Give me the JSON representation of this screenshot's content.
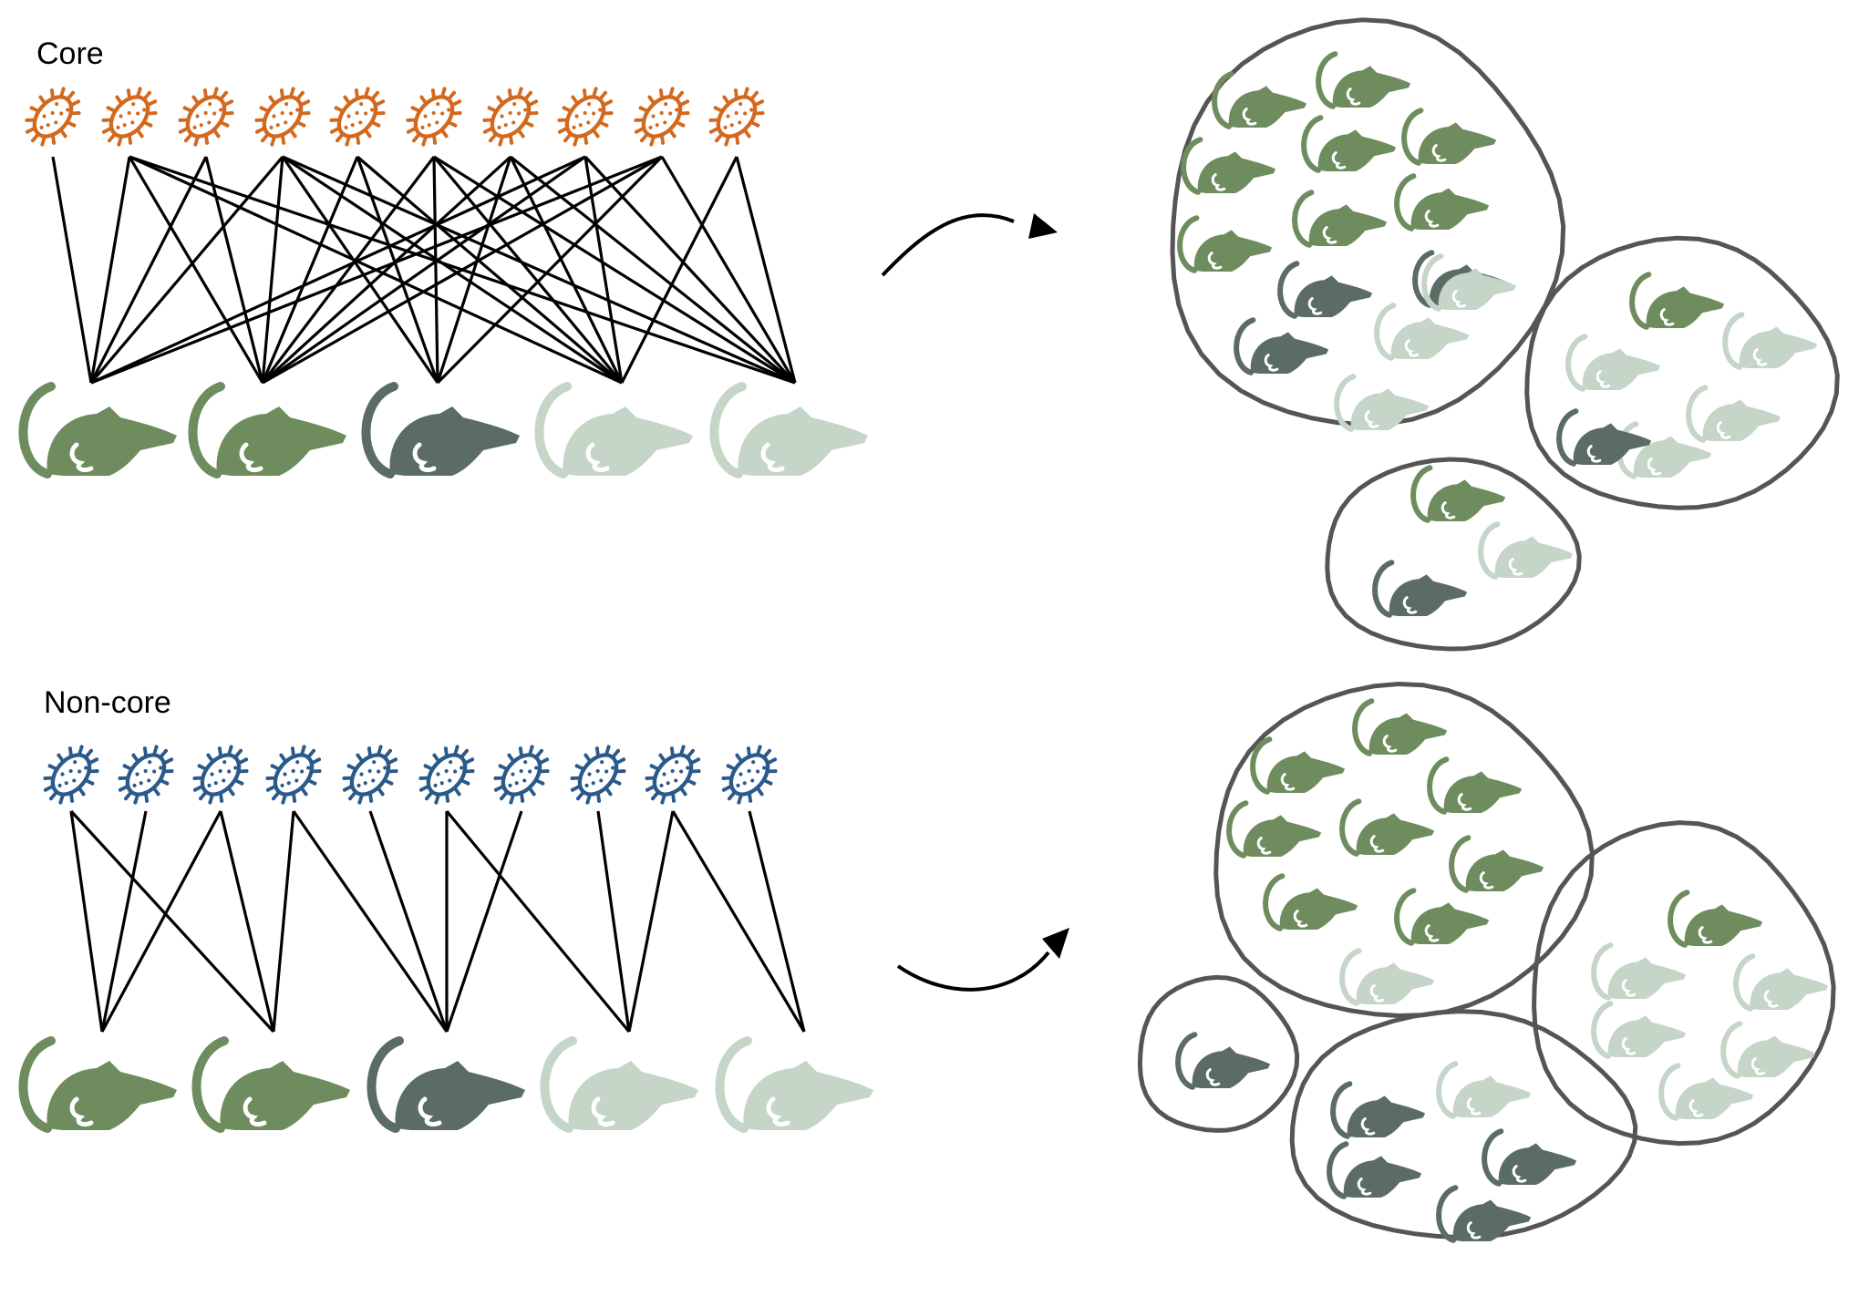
{
  "colors": {
    "core_bacteria": "#D2691E",
    "noncore_bacteria": "#2A5A8A",
    "mouse_green": "#6E8C5E",
    "mouse_dark": "#5B6B66",
    "mouse_light": "#C5D5C7",
    "cluster_outline": "#555555",
    "edge": "#000000"
  },
  "icons": {
    "bacterium": "bacterium-icon",
    "mouse": "mouse-icon"
  },
  "panels": [
    {
      "id": "core",
      "label": "Core",
      "bacteria_count": 10,
      "host_types": [
        "green",
        "green",
        "dark",
        "light",
        "light"
      ],
      "edges": [
        [
          0,
          0
        ],
        [
          1,
          0
        ],
        [
          2,
          0
        ],
        [
          3,
          0
        ],
        [
          7,
          0
        ],
        [
          8,
          0
        ],
        [
          1,
          1
        ],
        [
          2,
          1
        ],
        [
          3,
          1
        ],
        [
          4,
          1
        ],
        [
          5,
          1
        ],
        [
          6,
          1
        ],
        [
          7,
          1
        ],
        [
          8,
          1
        ],
        [
          3,
          2
        ],
        [
          4,
          2
        ],
        [
          5,
          2
        ],
        [
          6,
          2
        ],
        [
          8,
          2
        ],
        [
          1,
          3
        ],
        [
          3,
          3
        ],
        [
          4,
          3
        ],
        [
          5,
          3
        ],
        [
          6,
          3
        ],
        [
          7,
          3
        ],
        [
          9,
          3
        ],
        [
          1,
          4
        ],
        [
          3,
          4
        ],
        [
          5,
          4
        ],
        [
          6,
          4
        ],
        [
          7,
          4
        ],
        [
          8,
          4
        ],
        [
          9,
          4
        ]
      ],
      "clusters": [
        {
          "mice": [
            "green",
            "green",
            "green",
            "green",
            "green",
            "green",
            "green",
            "green",
            "dark",
            "dark",
            "dark",
            "light",
            "light",
            "light"
          ]
        },
        {
          "mice": [
            "green",
            "light",
            "light",
            "light",
            "light",
            "dark"
          ]
        },
        {
          "mice": [
            "green",
            "dark",
            "light"
          ]
        }
      ]
    },
    {
      "id": "non-core",
      "label": "Non-core",
      "bacteria_count": 10,
      "host_types": [
        "green",
        "green",
        "dark",
        "light",
        "light"
      ],
      "edges": [
        [
          0,
          0
        ],
        [
          1,
          0
        ],
        [
          2,
          0
        ],
        [
          0,
          1
        ],
        [
          2,
          1
        ],
        [
          3,
          1
        ],
        [
          3,
          2
        ],
        [
          4,
          2
        ],
        [
          5,
          2
        ],
        [
          6,
          2
        ],
        [
          5,
          3
        ],
        [
          7,
          3
        ],
        [
          8,
          3
        ],
        [
          8,
          4
        ],
        [
          9,
          4
        ]
      ],
      "clusters": [
        {
          "mice": [
            "green",
            "green",
            "green",
            "green",
            "green",
            "green",
            "green",
            "green",
            "light"
          ]
        },
        {
          "mice": [
            "green",
            "light",
            "light",
            "light",
            "light",
            "light"
          ]
        },
        {
          "mice": [
            "dark"
          ]
        },
        {
          "mice": [
            "dark",
            "dark",
            "dark",
            "dark",
            "light"
          ]
        }
      ]
    }
  ]
}
